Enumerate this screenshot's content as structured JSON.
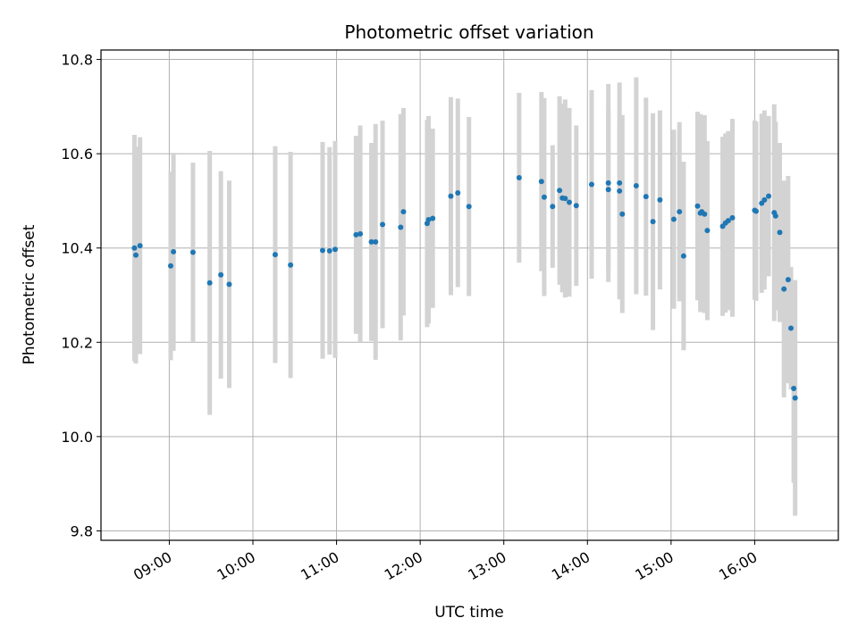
{
  "chart_data": {
    "type": "scatter",
    "title": "Photometric offset variation",
    "xlabel": "UTC time",
    "ylabel": "Photometric offset",
    "x_axis_type": "time",
    "xlim": [
      "08:11",
      "17:00"
    ],
    "ylim": [
      9.78,
      10.82
    ],
    "grid": true,
    "x_ticks": [
      "09:00",
      "10:00",
      "11:00",
      "12:00",
      "13:00",
      "14:00",
      "15:00",
      "16:00"
    ],
    "y_ticks": [
      "9.8",
      "10.0",
      "10.2",
      "10.4",
      "10.6",
      "10.8"
    ],
    "colors": {
      "points": "#1f77b4",
      "error_bars": "#d3d3d3",
      "grid": "#b0b0b0"
    },
    "series": [
      {
        "x": [
          "08:35",
          "08:36",
          "08:39",
          "09:01",
          "09:03",
          "09:17",
          "09:29",
          "09:37",
          "09:43",
          "10:16",
          "10:27",
          "10:50",
          "10:55",
          "10:59",
          "11:14",
          "11:17",
          "11:25",
          "11:28",
          "11:33",
          "11:46",
          "11:48",
          "12:05",
          "12:06",
          "12:09",
          "12:22",
          "12:27",
          "12:35",
          "13:11",
          "13:27",
          "13:29",
          "13:35",
          "13:40",
          "13:42",
          "13:44",
          "13:47",
          "13:52",
          "14:03",
          "14:15",
          "14:15",
          "14:23",
          "14:23",
          "14:25",
          "14:35",
          "14:42",
          "14:47",
          "14:52",
          "15:02",
          "15:06",
          "15:09",
          "15:19",
          "15:21",
          "15:22",
          "15:24",
          "15:26",
          "15:37",
          "15:39",
          "15:41",
          "15:44",
          "16:00",
          "16:01",
          "16:05",
          "16:07",
          "16:10",
          "16:14",
          "16:15",
          "16:18",
          "16:21",
          "16:24",
          "16:26",
          "16:28",
          "16:29"
        ],
        "y": [
          10.4,
          10.385,
          10.405,
          10.362,
          10.392,
          10.391,
          10.326,
          10.343,
          10.323,
          10.386,
          10.364,
          10.395,
          10.394,
          10.397,
          10.428,
          10.43,
          10.413,
          10.413,
          10.45,
          10.444,
          10.477,
          10.452,
          10.46,
          10.463,
          10.51,
          10.517,
          10.488,
          10.549,
          10.541,
          10.508,
          10.488,
          10.522,
          10.506,
          10.505,
          10.497,
          10.49,
          10.535,
          10.538,
          10.524,
          10.538,
          10.521,
          10.472,
          10.532,
          10.509,
          10.456,
          10.502,
          10.461,
          10.477,
          10.383,
          10.489,
          10.474,
          10.477,
          10.472,
          10.437,
          10.446,
          10.453,
          10.458,
          10.464,
          10.48,
          10.478,
          10.495,
          10.502,
          10.51,
          10.475,
          10.468,
          10.433,
          10.313,
          10.333,
          10.23,
          10.102,
          10.082
        ],
        "yerr": [
          0.24,
          0.23,
          0.23,
          0.2,
          0.21,
          0.19,
          0.28,
          0.22,
          0.22,
          0.23,
          0.24,
          0.23,
          0.22,
          0.23,
          0.21,
          0.23,
          0.21,
          0.25,
          0.22,
          0.24,
          0.22,
          0.22,
          0.22,
          0.19,
          0.21,
          0.2,
          0.19,
          0.18,
          0.19,
          0.21,
          0.13,
          0.2,
          0.2,
          0.21,
          0.2,
          0.17,
          0.2,
          0.21,
          0.17,
          0.13,
          0.23,
          0.21,
          0.23,
          0.21,
          0.23,
          0.19,
          0.19,
          0.19,
          0.2,
          0.2,
          0.21,
          0.19,
          0.21,
          0.19,
          0.19,
          0.19,
          0.19,
          0.21,
          0.19,
          0.19,
          0.19,
          0.19,
          0.17,
          0.23,
          0.2,
          0.19,
          0.23,
          0.22,
          0.13,
          0.2,
          0.25
        ]
      }
    ]
  }
}
